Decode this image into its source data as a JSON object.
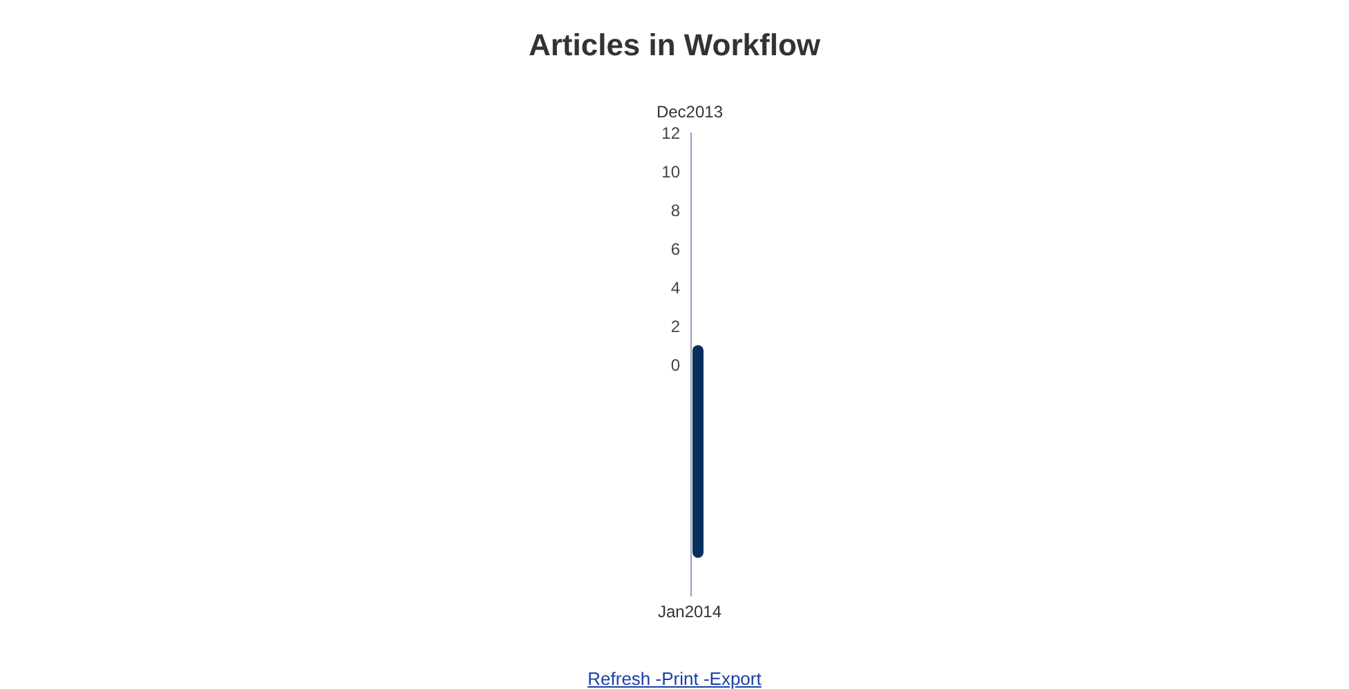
{
  "chart_data": {
    "type": "bar",
    "title": "Articles in Workflow",
    "categories": [
      null
    ],
    "values": [
      11
    ],
    "base": [
      -10
    ],
    "color": "#08305e",
    "ylim": [
      -12,
      12
    ],
    "yticks": [
      0,
      2,
      4,
      6,
      8,
      10,
      12
    ],
    "grid": false,
    "legend": false,
    "annotations": [
      "Dec2013",
      "Jan2014",
      "Refresh -Print -Export"
    ]
  }
}
